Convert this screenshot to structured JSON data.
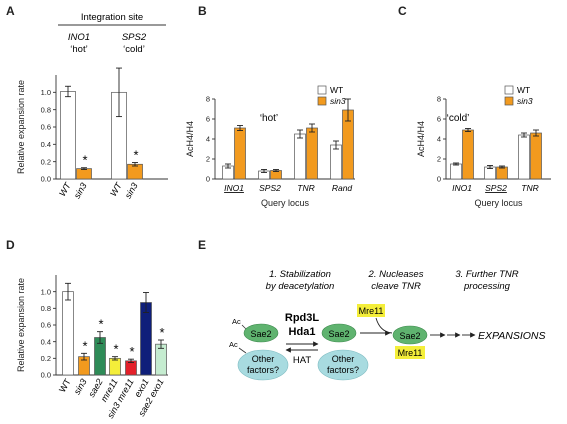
{
  "panels": {
    "a": {
      "label": "A",
      "header": "Integration site",
      "site1": "INO1",
      "site1_note": "‘hot’",
      "site2": "SPS2",
      "site2_note": "‘cold’"
    },
    "b": {
      "label": "B",
      "subtitle": "‘hot’"
    },
    "c": {
      "label": "C",
      "subtitle": "‘cold’"
    },
    "d": {
      "label": "D"
    },
    "e": {
      "label": "E"
    }
  },
  "colors": {
    "wt": "#ffffff",
    "sin3": "#f29a1e",
    "sae2": "#2e8b57",
    "mre11": "#f4ee3a",
    "sin3_mre11": "#e4202a",
    "exo1": "#0f1f7a",
    "sae2_exo1": "#c5ecd0",
    "sae2_node": "#5fb36f",
    "factor_node": "#a8dbe0",
    "mre11_node": "#f4ee3a"
  },
  "chart_data": [
    {
      "panel": "A",
      "type": "bar",
      "ylabel": "Relative expansion rate",
      "ylim": [
        0,
        1.2
      ],
      "yticks": [
        "0.0",
        "0.2",
        "0.4",
        "0.6",
        "0.8",
        "1.0"
      ],
      "categories": [
        "WT",
        "sin3",
        "WT",
        "sin3"
      ],
      "values": [
        1.01,
        0.12,
        1.0,
        0.17
      ],
      "errors": [
        0.06,
        0.01,
        0.28,
        0.02
      ],
      "fills": [
        "wt",
        "sin3",
        "wt",
        "sin3"
      ],
      "italic": [
        true,
        true,
        true,
        true
      ],
      "stars": [
        false,
        true,
        false,
        true
      ],
      "star": "*"
    },
    {
      "panel": "B",
      "type": "bar",
      "ylabel": "AcH4/H4",
      "xlabel": "Query locus",
      "ylim": [
        0,
        8
      ],
      "yticks": [
        "0",
        "2",
        "4",
        "6",
        "8"
      ],
      "categories": [
        "INO1",
        "SPS2",
        "TNR",
        "Rand"
      ],
      "italic": [
        true,
        true,
        true,
        true
      ],
      "underline": [
        true,
        false,
        false,
        false
      ],
      "legend": [
        "WT",
        "sin3"
      ],
      "legend_italic": [
        false,
        true
      ],
      "series": [
        {
          "name": "WT",
          "values": [
            1.3,
            0.8,
            4.5,
            3.4
          ],
          "errors": [
            0.2,
            0.15,
            0.4,
            0.4
          ]
        },
        {
          "name": "sin3",
          "values": [
            5.1,
            0.85,
            5.1,
            6.9
          ],
          "errors": [
            0.25,
            0.1,
            0.4,
            1.1
          ]
        }
      ]
    },
    {
      "panel": "C",
      "type": "bar",
      "ylabel": "AcH4/H4",
      "xlabel": "Query locus",
      "ylim": [
        0,
        8
      ],
      "yticks": [
        "0",
        "2",
        "4",
        "6",
        "8"
      ],
      "categories": [
        "INO1",
        "SPS2",
        "TNR"
      ],
      "italic": [
        true,
        true,
        true
      ],
      "underline": [
        false,
        true,
        false
      ],
      "legend": [
        "WT",
        "sin3"
      ],
      "legend_italic": [
        false,
        true
      ],
      "series": [
        {
          "name": "WT",
          "values": [
            1.5,
            1.2,
            4.4
          ],
          "errors": [
            0.1,
            0.15,
            0.2
          ]
        },
        {
          "name": "sin3",
          "values": [
            4.9,
            1.2,
            4.6
          ],
          "errors": [
            0.15,
            0.1,
            0.3
          ]
        }
      ]
    },
    {
      "panel": "D",
      "type": "bar",
      "ylabel": "Relative expansion rate",
      "ylim": [
        0,
        1.2
      ],
      "yticks": [
        "0.0",
        "0.2",
        "0.4",
        "0.6",
        "0.8",
        "1.0"
      ],
      "categories": [
        "WT",
        "sin3",
        "sae2",
        "mre11",
        "sin3 mre11",
        "exo1",
        "sae2 exo1"
      ],
      "values": [
        1.0,
        0.22,
        0.45,
        0.2,
        0.17,
        0.87,
        0.37
      ],
      "errors": [
        0.1,
        0.04,
        0.07,
        0.02,
        0.02,
        0.12,
        0.05
      ],
      "fills": [
        "wt",
        "sin3",
        "sae2",
        "mre11",
        "sin3_mre11",
        "exo1",
        "sae2_exo1"
      ],
      "italic": [
        false,
        true,
        true,
        true,
        true,
        true,
        true
      ],
      "stars": [
        false,
        true,
        true,
        true,
        true,
        false,
        true
      ],
      "star": "*"
    }
  ],
  "diagram": {
    "step1": [
      "1. Stabilization",
      "by deacetylation"
    ],
    "step2": [
      "2. Nucleases",
      "cleave TNR"
    ],
    "step3": [
      "3. Further TNR",
      "processing"
    ],
    "enzyme": [
      "Rpd3L",
      "Hda1"
    ],
    "hat": "HAT",
    "ac": "Ac",
    "sae2": "Sae2",
    "factors": [
      "Other",
      "factors?"
    ],
    "mre11": "Mre11",
    "outcome": "EXPANSIONS"
  }
}
